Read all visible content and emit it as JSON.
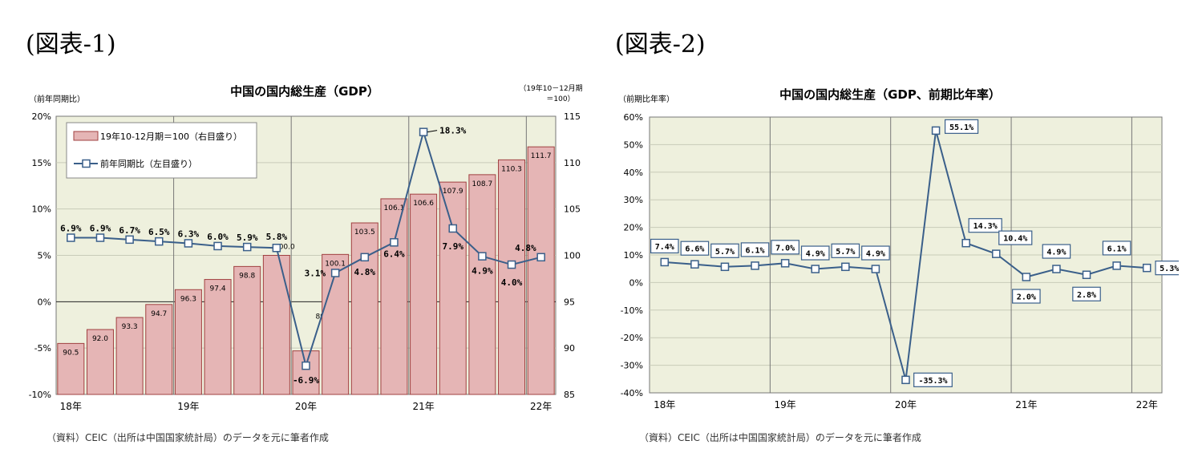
{
  "figure1": {
    "heading": "(図表-1)",
    "source": "（資料）CEIC（出所は中国国家統計局）のデータを元に筆者作成"
  },
  "figure2": {
    "heading": "(図表-2)",
    "source": "（資料）CEIC（出所は中国国家統計局）のデータを元に筆者作成"
  },
  "chart_data": [
    {
      "type": "bar+line",
      "title": "中国の国内総生産（GDP）",
      "left_axis_label": "（前年同期比）",
      "right_axis_label_line1": "（19年10－12月期",
      "right_axis_label_line2": "＝100）",
      "left_ticks": [
        "20%",
        "15%",
        "10%",
        "5%",
        "0%",
        "-5%",
        "-10%"
      ],
      "right_ticks": [
        "115",
        "110",
        "105",
        "100",
        "95",
        "90",
        "85"
      ],
      "ylim_left": [
        -10,
        20
      ],
      "ylim_right": [
        85,
        115
      ],
      "year_labels": [
        "18年",
        "19年",
        "20年",
        "21年",
        "22年"
      ],
      "grid": true,
      "legend_position": "top-left",
      "series": [
        {
          "name": "19年10-12月期＝100（右目盛り）",
          "axis": "right",
          "kind": "bar",
          "color": "#e5b5b5",
          "edge_color": "#a04040",
          "values": [
            90.5,
            92.0,
            93.3,
            94.7,
            96.3,
            97.4,
            98.8,
            100.0,
            89.7,
            100.1,
            103.5,
            106.1,
            106.6,
            107.9,
            108.7,
            110.3,
            111.7
          ],
          "labels": [
            "90.5",
            "92.0",
            "93.3",
            "94.7",
            "96.3",
            "97.4",
            "98.8",
            "100.0",
            "89.7",
            "100.1",
            "103.5",
            "106.1",
            "106.6",
            "107.9",
            "108.7",
            "110.3",
            "111.7"
          ]
        },
        {
          "name": "前年同期比（左目盛り）",
          "axis": "left",
          "kind": "line",
          "color": "#3a5f8a",
          "values": [
            6.9,
            6.9,
            6.7,
            6.5,
            6.3,
            6.0,
            5.9,
            5.8,
            -6.9,
            3.1,
            4.8,
            6.4,
            18.3,
            7.9,
            4.9,
            4.0,
            4.8
          ],
          "labels": [
            "6.9%",
            "6.9%",
            "6.7%",
            "6.5%",
            "6.3%",
            "6.0%",
            "5.9%",
            "5.8%",
            "-6.9%",
            "3.1%",
            "4.8%",
            "6.4%",
            "18.3%",
            "7.9%",
            "4.9%",
            "4.0%",
            "4.8%"
          ]
        }
      ]
    },
    {
      "type": "line",
      "title": "中国の国内総生産（GDP、前期比年率）",
      "left_axis_label": "（前期比年率）",
      "y_ticks": [
        "60%",
        "50%",
        "40%",
        "30%",
        "20%",
        "10%",
        "0%",
        "-10%",
        "-20%",
        "-30%",
        "-40%"
      ],
      "ylim": [
        -40,
        60
      ],
      "year_labels": [
        "18年",
        "19年",
        "20年",
        "21年",
        "22年"
      ],
      "grid": true,
      "series": [
        {
          "color": "#3a5f8a",
          "values": [
            7.4,
            6.6,
            5.7,
            6.1,
            7.0,
            4.9,
            5.7,
            4.9,
            -35.3,
            55.1,
            14.3,
            10.4,
            2.0,
            4.9,
            2.8,
            6.1,
            5.3
          ],
          "labels": [
            "7.4%",
            "6.6%",
            "5.7%",
            "6.1%",
            "7.0%",
            "4.9%",
            "5.7%",
            "4.9%",
            "-35.3%",
            "55.1%",
            "14.3%",
            "10.4%",
            "2.0%",
            "4.9%",
            "2.8%",
            "6.1%",
            "5.3%"
          ]
        }
      ]
    }
  ]
}
